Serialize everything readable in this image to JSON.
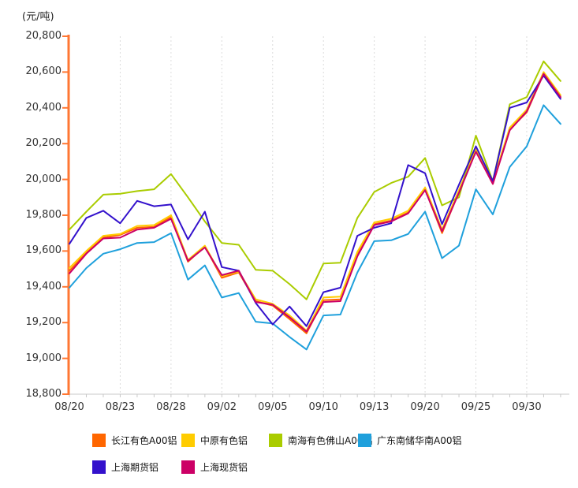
{
  "chart_data": {
    "type": "line",
    "title": "",
    "y_unit_label": "(元/吨)",
    "grid": "vertical-dashed-only",
    "legend_position": "bottom",
    "y_axis": {
      "min": 18800,
      "max": 20800,
      "step": 200,
      "tick_labels": [
        "20,800",
        "20,600",
        "20,400",
        "20,200",
        "20,000",
        "19,800",
        "19,600",
        "19,400",
        "19,200",
        "19,000",
        "18,800"
      ]
    },
    "x_axis": {
      "num_points": 30,
      "tick_labels": [
        {
          "label": "08/20",
          "point_index": 0
        },
        {
          "label": "08/23",
          "point_index": 3
        },
        {
          "label": "08/28",
          "point_index": 6
        },
        {
          "label": "09/02",
          "point_index": 9
        },
        {
          "label": "09/05",
          "point_index": 12
        },
        {
          "label": "09/10",
          "point_index": 15
        },
        {
          "label": "09/13",
          "point_index": 18
        },
        {
          "label": "09/20",
          "point_index": 21
        },
        {
          "label": "09/25",
          "point_index": 24
        },
        {
          "label": "09/30",
          "point_index": 27
        }
      ]
    },
    "series": [
      {
        "name": "长江有色A00铝",
        "color": "#FF6600",
        "values": [
          19490,
          19590,
          19675,
          19690,
          19730,
          19735,
          19790,
          19540,
          19625,
          19450,
          19480,
          19320,
          19295,
          19220,
          19140,
          19325,
          19330,
          19580,
          19750,
          19770,
          19815,
          19945,
          19700,
          19930,
          20160,
          19975,
          20280,
          20375,
          20590,
          20460
        ]
      },
      {
        "name": "中原有色铝",
        "color": "#FFCC00",
        "values": [
          19505,
          19600,
          19685,
          19695,
          19740,
          19745,
          19800,
          19550,
          19630,
          19460,
          19485,
          19330,
          19305,
          19240,
          19155,
          19340,
          19345,
          19595,
          19760,
          19780,
          19825,
          19955,
          19720,
          19940,
          20170,
          19990,
          20290,
          20390,
          20600,
          20470
        ]
      },
      {
        "name": "南海有色佛山A00铝",
        "color": "#AACC00",
        "values": [
          19720,
          19820,
          19915,
          19920,
          19935,
          19945,
          20030,
          19900,
          19765,
          19645,
          19635,
          19495,
          19490,
          19415,
          19330,
          19530,
          19535,
          19785,
          19930,
          19980,
          20015,
          20120,
          19855,
          19900,
          20245,
          19990,
          20420,
          20460,
          20660,
          20550
        ]
      },
      {
        "name": "广东南储华南A00铝",
        "color": "#1FA0DC",
        "values": [
          19395,
          19505,
          19585,
          19610,
          19645,
          19650,
          19700,
          19440,
          19520,
          19340,
          19365,
          19205,
          19195,
          19120,
          19050,
          19240,
          19245,
          19480,
          19655,
          19660,
          19695,
          19820,
          19560,
          19630,
          19945,
          19805,
          20070,
          20185,
          20415,
          20310
        ]
      },
      {
        "name": "上海期货铝",
        "color": "#3311CC",
        "values": [
          19640,
          19785,
          19825,
          19755,
          19880,
          19850,
          19860,
          19665,
          19820,
          19510,
          19490,
          19310,
          19190,
          19290,
          19180,
          19370,
          19395,
          19685,
          19730,
          19755,
          20080,
          20035,
          19750,
          19970,
          20185,
          19990,
          20400,
          20430,
          20580,
          20450
        ]
      },
      {
        "name": "上海现货铝",
        "color": "#CC0066",
        "values": [
          19475,
          19585,
          19670,
          19675,
          19720,
          19730,
          19780,
          19545,
          19620,
          19465,
          19490,
          19315,
          19300,
          19230,
          19150,
          19315,
          19320,
          19570,
          19745,
          19765,
          19810,
          19940,
          19710,
          19925,
          20155,
          19975,
          20275,
          20380,
          20590,
          20460
        ]
      }
    ],
    "style_colors": {
      "y_axis_line": "#FF7733",
      "x_axis_line": "#C8C8C8",
      "gridline": "#DCDCDC",
      "tick_text": "#333333"
    }
  }
}
